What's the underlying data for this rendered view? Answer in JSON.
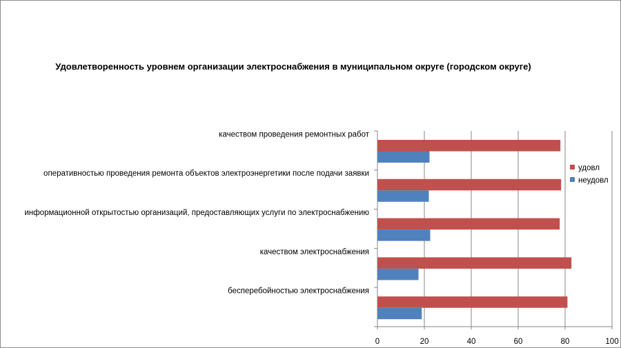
{
  "chart_data": {
    "type": "bar",
    "orientation": "horizontal",
    "title": "Удовлетворенность уровнем организации электроснабжения в муниципальном округе (городском округе)",
    "categories": [
      "качеством проведения ремонтных работ",
      "оперативностью проведения ремонта объектов электроэнергетики после подачи заявки",
      "информационной открытостью организаций, предоставляющих услуги по электроснабжению",
      "качеством электроснабжения",
      "бесперебойностью электроснабжения"
    ],
    "series": [
      {
        "name": "удовл",
        "color": "#c0504d",
        "values": [
          78.0,
          78.3,
          77.7,
          82.7,
          81.0
        ]
      },
      {
        "name": "неудовл",
        "color": "#4f81bd",
        "values": [
          22.2,
          21.9,
          22.5,
          17.5,
          18.9
        ]
      }
    ],
    "xlim": [
      0,
      100
    ],
    "xticks": [
      "0",
      "20",
      "40",
      "60",
      "80",
      "100"
    ],
    "grid": true,
    "legend": "right",
    "xlabel": "",
    "ylabel": ""
  }
}
